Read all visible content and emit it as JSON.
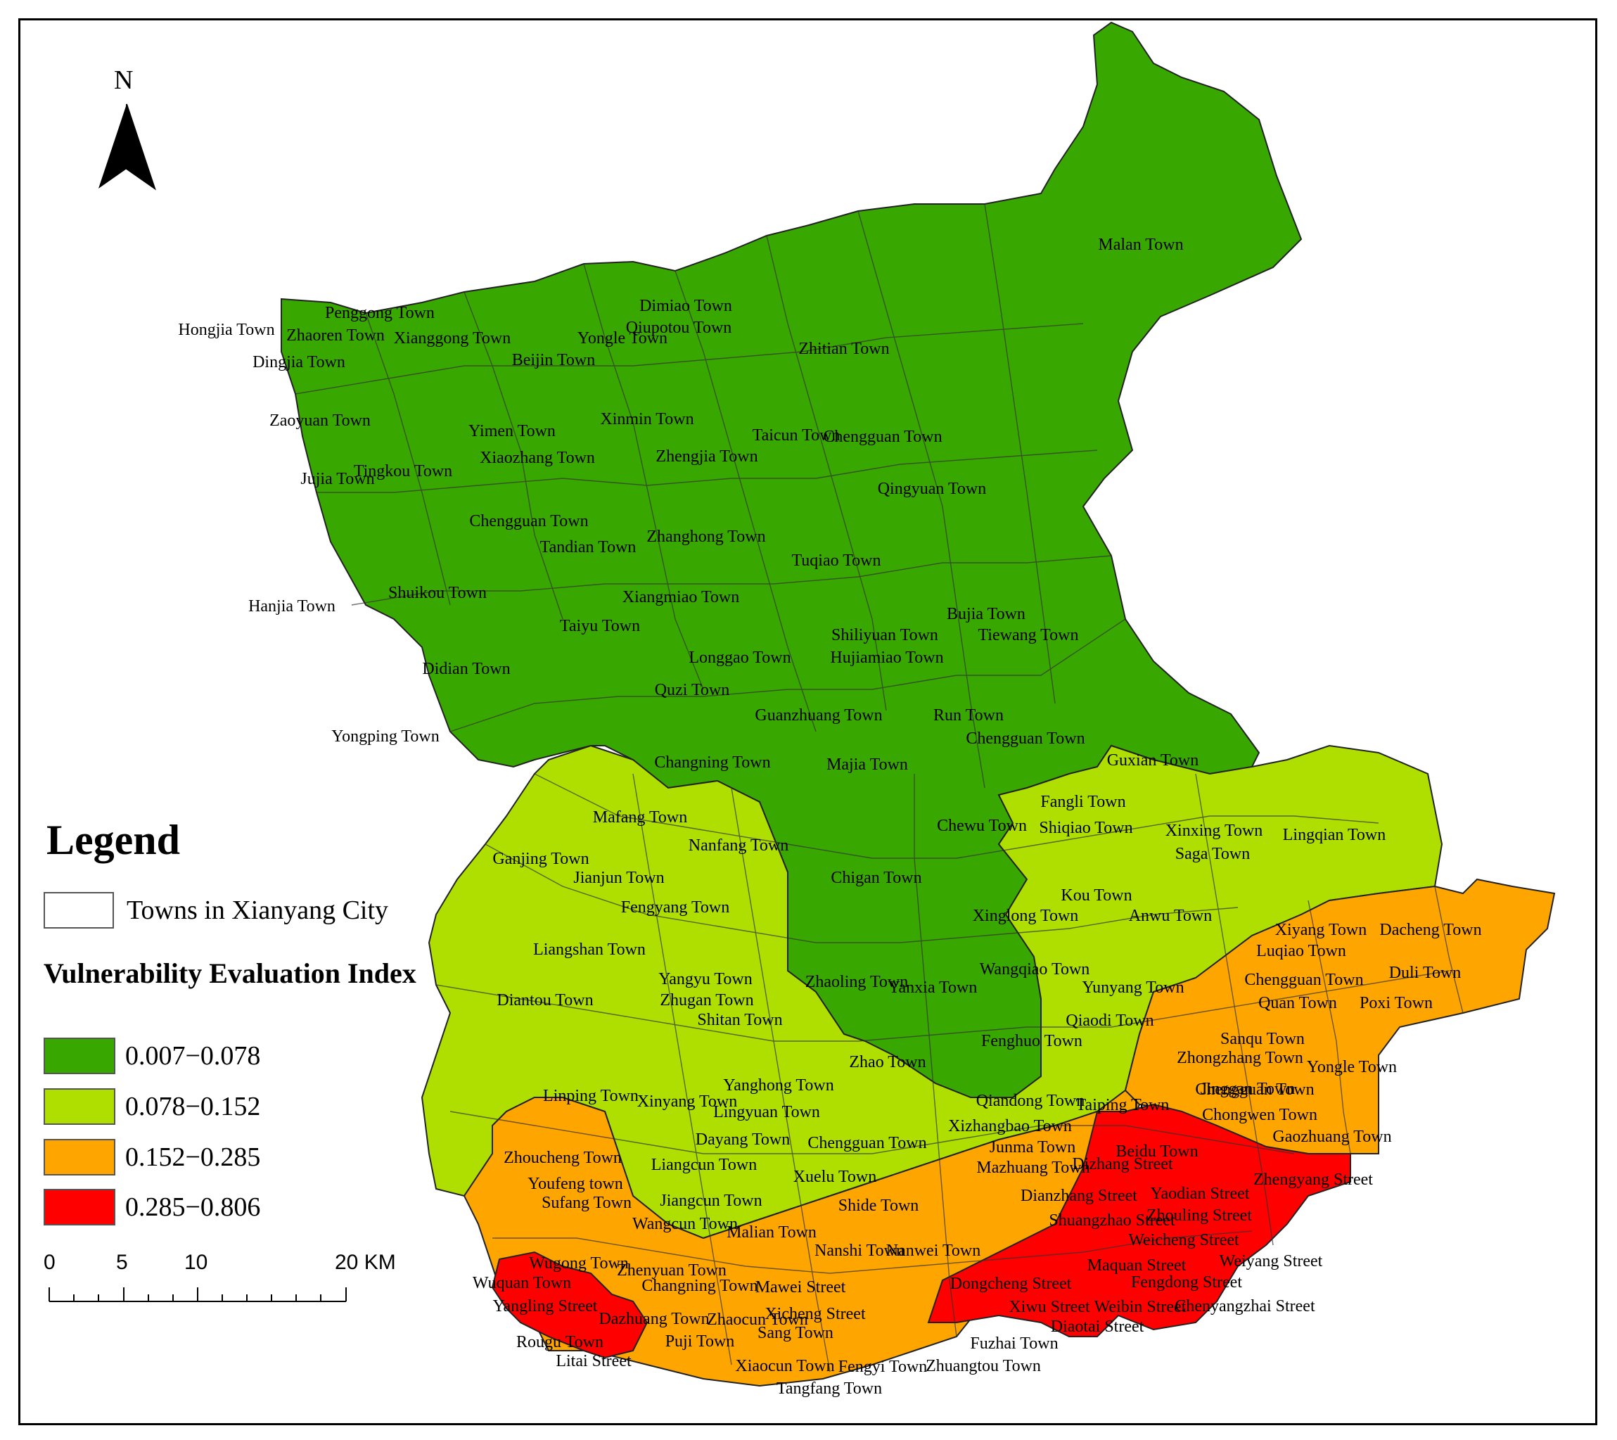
{
  "map": {
    "north_label": "N",
    "legend": {
      "title": "Legend",
      "towns_label": "Towns in Xianyang City",
      "index_title": "Vulnerability Evaluation Index",
      "classes": [
        {
          "label": "0.007−0.078",
          "color": "#38a800"
        },
        {
          "label": "0.078−0.152",
          "color": "#aedf00"
        },
        {
          "label": "0.152−0.285",
          "color": "#ffa500"
        },
        {
          "label": "0.285−0.806",
          "color": "#ff0000"
        }
      ]
    },
    "scale": {
      "ticks": [
        "0",
        "5",
        "10",
        "20 KM"
      ]
    },
    "towns": [
      {
        "name": "Malan Town",
        "class": 0
      },
      {
        "name": "Penggong Town",
        "class": 1
      },
      {
        "name": "Hongjia Town",
        "class": 0
      },
      {
        "name": "Zhaoren Town",
        "class": 0
      },
      {
        "name": "Xianggong Town",
        "class": 1
      },
      {
        "name": "Dimiao Town",
        "class": 0
      },
      {
        "name": "Yongle Town",
        "class": 1
      },
      {
        "name": "Qiupotou Town",
        "class": 0
      },
      {
        "name": "Zhitian Town",
        "class": 0
      },
      {
        "name": "Dingjia Town",
        "class": 0
      },
      {
        "name": "Beijin Town",
        "class": 0
      },
      {
        "name": "Zaoyuan Town",
        "class": 0
      },
      {
        "name": "Yimen Town",
        "class": 0
      },
      {
        "name": "Xinmin Town",
        "class": 0
      },
      {
        "name": "Taicun Town",
        "class": 0
      },
      {
        "name": "Chengguan Town",
        "class": 0
      },
      {
        "name": "Xiaozhang Town",
        "class": 0
      },
      {
        "name": "Zhengjia Town",
        "class": 0
      },
      {
        "name": "Jujia Town",
        "class": 0
      },
      {
        "name": "Tingkou Town",
        "class": 0
      },
      {
        "name": "Qingyuan Town",
        "class": 0
      },
      {
        "name": "Chengguan Town",
        "class": 1
      },
      {
        "name": "Tandian Town",
        "class": 1
      },
      {
        "name": "Zhanghong Town",
        "class": 0
      },
      {
        "name": "Tuqiao Town",
        "class": 0
      },
      {
        "name": "Hanjia Town",
        "class": 0
      },
      {
        "name": "Shuikou Town",
        "class": 1
      },
      {
        "name": "Xiangmiao Town",
        "class": 0
      },
      {
        "name": "Bujia Town",
        "class": 1
      },
      {
        "name": "Taiyu Town",
        "class": 0
      },
      {
        "name": "Shiliyuan Town",
        "class": 0
      },
      {
        "name": "Tiewang Town",
        "class": 0
      },
      {
        "name": "Didian Town",
        "class": 0
      },
      {
        "name": "Longgao Town",
        "class": 0
      },
      {
        "name": "Hujiamiao Town",
        "class": 0
      },
      {
        "name": "Quzi Town",
        "class": 0
      },
      {
        "name": "Guanzhuang Town",
        "class": 1
      },
      {
        "name": "Run Town",
        "class": 1
      },
      {
        "name": "Yongping Town",
        "class": 0
      },
      {
        "name": "Chengguan Town",
        "class": 0
      },
      {
        "name": "Changning Town",
        "class": 0
      },
      {
        "name": "Majia Town",
        "class": 0
      },
      {
        "name": "Guxian Town",
        "class": 0
      },
      {
        "name": "Fangli Town",
        "class": 1
      },
      {
        "name": "Mafang Town",
        "class": 1
      },
      {
        "name": "Chewu Town",
        "class": 0
      },
      {
        "name": "Shiqiao Town",
        "class": 1
      },
      {
        "name": "Xinxing Town",
        "class": 1
      },
      {
        "name": "Lingqian Town",
        "class": 1
      },
      {
        "name": "Ganjing Town",
        "class": 1
      },
      {
        "name": "Nanfang Town",
        "class": 0
      },
      {
        "name": "Saga Town",
        "class": 1
      },
      {
        "name": "Jianjun Town",
        "class": 1
      },
      {
        "name": "Chigan Town",
        "class": 1
      },
      {
        "name": "Kou Town",
        "class": 1
      },
      {
        "name": "Fengyang Town",
        "class": 1
      },
      {
        "name": "Xinglong Town",
        "class": 1
      },
      {
        "name": "Anwu Town",
        "class": 1
      },
      {
        "name": "Xiyang Town",
        "class": 2
      },
      {
        "name": "Dacheng Town",
        "class": 2
      },
      {
        "name": "Liangshan Town",
        "class": 1
      },
      {
        "name": "Luqiao Town",
        "class": 2
      },
      {
        "name": "Wangqiao Town",
        "class": 1
      },
      {
        "name": "Yangyu Town",
        "class": 1
      },
      {
        "name": "Zhaoling Town",
        "class": 0
      },
      {
        "name": "Yanxia Town",
        "class": 0
      },
      {
        "name": "Yunyang Town",
        "class": 2
      },
      {
        "name": "Chengguan Town",
        "class": 2
      },
      {
        "name": "Duli Town",
        "class": 2
      },
      {
        "name": "Diantou Town",
        "class": 1
      },
      {
        "name": "Zhugan Town",
        "class": 1
      },
      {
        "name": "Quan Town",
        "class": 2
      },
      {
        "name": "Poxi Town",
        "class": 2
      },
      {
        "name": "Shitan Town",
        "class": 0
      },
      {
        "name": "Qiaodi Town",
        "class": 2
      },
      {
        "name": "Sanqu Town",
        "class": 2
      },
      {
        "name": "Fenghuo Town",
        "class": 1
      },
      {
        "name": "Zhongzhang Town",
        "class": 2
      },
      {
        "name": "Yongle Town",
        "class": 2
      },
      {
        "name": "Chengguan Town",
        "class": 2
      },
      {
        "name": "Zhao Town",
        "class": 0
      },
      {
        "name": "Yanghong Town",
        "class": 1
      },
      {
        "name": "Jinggan Town",
        "class": 2
      },
      {
        "name": "Linping Town",
        "class": 1
      },
      {
        "name": "Xinyang Town",
        "class": 2
      },
      {
        "name": "Qiandong Town",
        "class": 0
      },
      {
        "name": "Taiping Town",
        "class": 1
      },
      {
        "name": "Chongwen Town",
        "class": 2
      },
      {
        "name": "Lingyuan Town",
        "class": 1
      },
      {
        "name": "Xizhangbao Town",
        "class": 1
      },
      {
        "name": "Gaozhuang Town",
        "class": 2
      },
      {
        "name": "Dayang Town",
        "class": 1
      },
      {
        "name": "Chengguan Town",
        "class": 1
      },
      {
        "name": "Junma Town",
        "class": 2
      },
      {
        "name": "Beidu Town",
        "class": 3
      },
      {
        "name": "Zhoucheng Town",
        "class": 2
      },
      {
        "name": "Liangcun Town",
        "class": 2
      },
      {
        "name": "Mazhuang Town",
        "class": 2
      },
      {
        "name": "Dizhang Street",
        "class": 3
      },
      {
        "name": "Zhengyang Street",
        "class": 3
      },
      {
        "name": "Youfeng town",
        "class": 2
      },
      {
        "name": "Xuelu Town",
        "class": 1
      },
      {
        "name": "Yaodian Street",
        "class": 3
      },
      {
        "name": "Dianzhang Street",
        "class": 2
      },
      {
        "name": "Sufang Town",
        "class": 2
      },
      {
        "name": "Jiangcun Town",
        "class": 1
      },
      {
        "name": "Shide Town",
        "class": 1
      },
      {
        "name": "Shuangzhao Street",
        "class": 3
      },
      {
        "name": "Zhouling Street",
        "class": 3
      },
      {
        "name": "Wangcun Town",
        "class": 2
      },
      {
        "name": "Malian Town",
        "class": 1
      },
      {
        "name": "Weicheng Street",
        "class": 3
      },
      {
        "name": "Nanshi Town",
        "class": 2
      },
      {
        "name": "Nanwei Town",
        "class": 2
      },
      {
        "name": "Wugong Town",
        "class": 2
      },
      {
        "name": "Weiyang Street",
        "class": 3
      },
      {
        "name": "Maquan Street",
        "class": 3
      },
      {
        "name": "Zhenyuan Town",
        "class": 2
      },
      {
        "name": "Fengdong Street",
        "class": 3
      },
      {
        "name": "Wuquan Town",
        "class": 3
      },
      {
        "name": "Dongcheng Street",
        "class": 3
      },
      {
        "name": "Changning Town",
        "class": 2
      },
      {
        "name": "Mawei Street",
        "class": 2
      },
      {
        "name": "Xiwu Street",
        "class": 3
      },
      {
        "name": "Weibin Street",
        "class": 3
      },
      {
        "name": "Chenyangzhai Street",
        "class": 3
      },
      {
        "name": "Yangling Street",
        "class": 3
      },
      {
        "name": "Xicheng Street",
        "class": 2
      },
      {
        "name": "Dazhuang Town",
        "class": 3
      },
      {
        "name": "Zhaocun Town",
        "class": 2
      },
      {
        "name": "Diaotai Street",
        "class": 3
      },
      {
        "name": "Rougu Town",
        "class": 3
      },
      {
        "name": "Sang Town",
        "class": 2
      },
      {
        "name": "Puji Town",
        "class": 2
      },
      {
        "name": "Fuzhai Town",
        "class": 2
      },
      {
        "name": "Litai Street",
        "class": 3
      },
      {
        "name": "Xiaocun Town",
        "class": 2
      },
      {
        "name": "Fengyi Town",
        "class": 2
      },
      {
        "name": "Zhuangtou Town",
        "class": 2
      },
      {
        "name": "Tangfang Town",
        "class": 2
      }
    ]
  }
}
